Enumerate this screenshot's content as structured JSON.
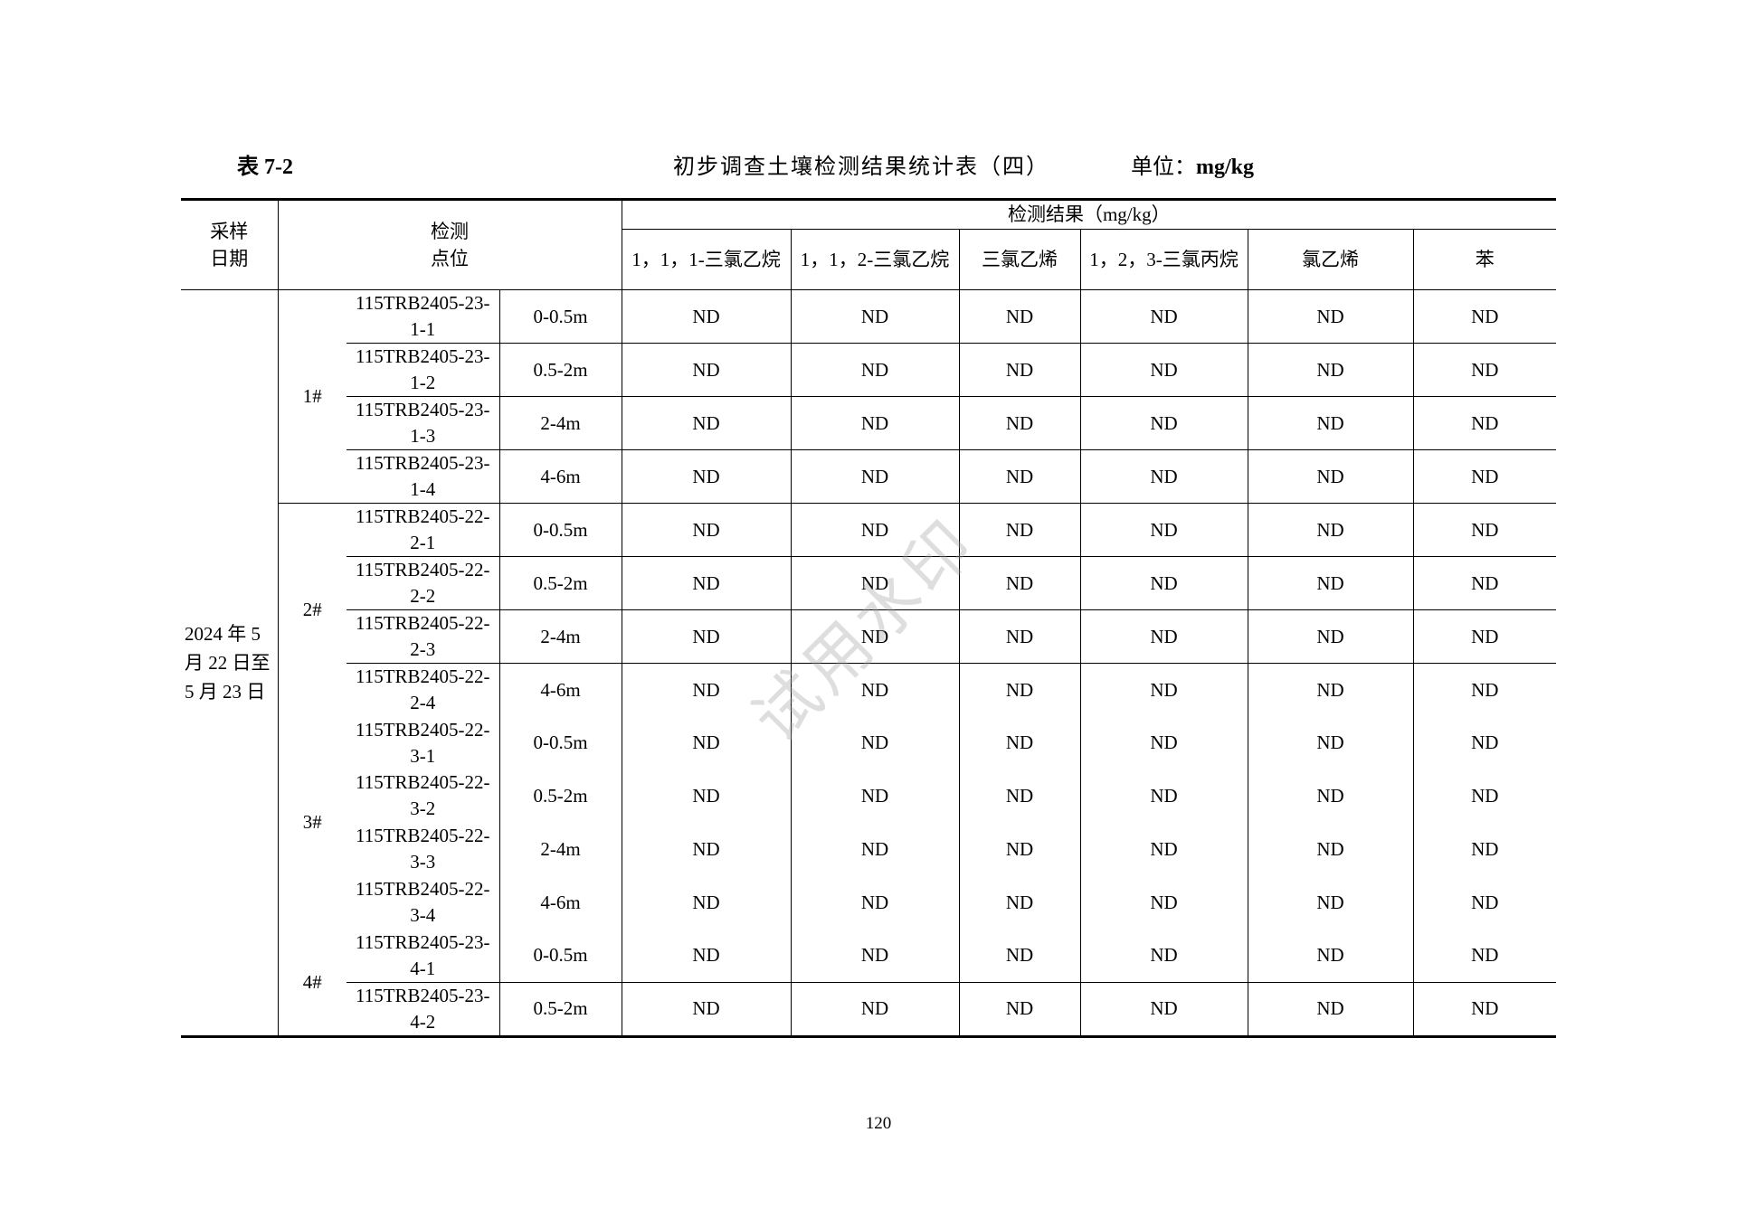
{
  "caption": {
    "table_no": "表 7-2",
    "title": "初步调查土壤检测结果统计表（四）",
    "unit_label": "单位：",
    "unit": "mg/kg"
  },
  "header": {
    "date": "采样日期",
    "point": "检测点位",
    "results": "检测结果（mg/kg）",
    "chemicals": [
      "1，1，1-三氯乙烷",
      "1，1，2-三氯乙烷",
      "三氯乙烯",
      "1，2，3-三氯丙烷",
      "氯乙烯",
      "苯"
    ]
  },
  "date_value": "2024 年 5 月 22 日至 5 月 23 日",
  "groups": [
    "1#",
    "2#",
    "3#",
    "4#"
  ],
  "rows": [
    {
      "id": "115TRB2405-23-1-1",
      "depth": "0-0.5m",
      "values": [
        "ND",
        "ND",
        "ND",
        "ND",
        "ND",
        "ND"
      ]
    },
    {
      "id": "115TRB2405-23-1-2",
      "depth": "0.5-2m",
      "values": [
        "ND",
        "ND",
        "ND",
        "ND",
        "ND",
        "ND"
      ]
    },
    {
      "id": "115TRB2405-23-1-3",
      "depth": "2-4m",
      "values": [
        "ND",
        "ND",
        "ND",
        "ND",
        "ND",
        "ND"
      ]
    },
    {
      "id": "115TRB2405-23-1-4",
      "depth": "4-6m",
      "values": [
        "ND",
        "ND",
        "ND",
        "ND",
        "ND",
        "ND"
      ]
    },
    {
      "id": "115TRB2405-22-2-1",
      "depth": "0-0.5m",
      "values": [
        "ND",
        "ND",
        "ND",
        "ND",
        "ND",
        "ND"
      ]
    },
    {
      "id": "115TRB2405-22-2-2",
      "depth": "0.5-2m",
      "values": [
        "ND",
        "ND",
        "ND",
        "ND",
        "ND",
        "ND"
      ]
    },
    {
      "id": "115TRB2405-22-2-3",
      "depth": "2-4m",
      "values": [
        "ND",
        "ND",
        "ND",
        "ND",
        "ND",
        "ND"
      ]
    },
    {
      "id": "115TRB2405-22-2-4",
      "depth": "4-6m",
      "values": [
        "ND",
        "ND",
        "ND",
        "ND",
        "ND",
        "ND"
      ]
    },
    {
      "id": "115TRB2405-22-3-1",
      "depth": "0-0.5m",
      "values": [
        "ND",
        "ND",
        "ND",
        "ND",
        "ND",
        "ND"
      ]
    },
    {
      "id": "115TRB2405-22-3-2",
      "depth": "0.5-2m",
      "values": [
        "ND",
        "ND",
        "ND",
        "ND",
        "ND",
        "ND"
      ]
    },
    {
      "id": "115TRB2405-22-3-3",
      "depth": "2-4m",
      "values": [
        "ND",
        "ND",
        "ND",
        "ND",
        "ND",
        "ND"
      ]
    },
    {
      "id": "115TRB2405-22-3-4",
      "depth": "4-6m",
      "values": [
        "ND",
        "ND",
        "ND",
        "ND",
        "ND",
        "ND"
      ]
    },
    {
      "id": "115TRB2405-23-4-1",
      "depth": "0-0.5m",
      "values": [
        "ND",
        "ND",
        "ND",
        "ND",
        "ND",
        "ND"
      ]
    },
    {
      "id": "115TRB2405-23-4-2",
      "depth": "0.5-2m",
      "values": [
        "ND",
        "ND",
        "ND",
        "ND",
        "ND",
        "ND"
      ]
    }
  ],
  "watermark": "试用水印",
  "page_number": "120"
}
